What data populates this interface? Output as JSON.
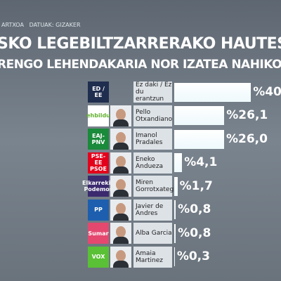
{
  "header": {
    "source": "ARTXOA   DATUAK: GIZAKER",
    "title": "SKO LEGEBILTZARRERAKO HAUTESKUN",
    "subtitle": "RENGO LEHENDAKARIA NOR IZATEA NAHIKO ZENUKE"
  },
  "chart_data": {
    "type": "bar",
    "orientation": "horizontal",
    "color": "#eef9fc",
    "categories": [
      "Ez daki / Ez du erantzun",
      "Pello Otxandiano",
      "Imanol Pradales",
      "Eneko Andueza",
      "Miren Gorrotxategi",
      "Javier de Andres",
      "Alba Garcia",
      "Amaia Martinez"
    ],
    "logos": [
      "ED / EE",
      "ehbildu",
      "EAJ-PNV",
      "PSE-EE PSOE",
      "Elkarrekin Podemos",
      "PP",
      "Sumar",
      "VOX"
    ],
    "logo_colors": [
      "#1f2d4f",
      "#ffffff",
      "#1a8a3b",
      "#e3001b",
      "#3b2a6e",
      "#1d5fae",
      "#e4486f",
      "#5ac035"
    ],
    "values": [
      40,
      26.1,
      26.0,
      4.1,
      1.7,
      0.8,
      0.8,
      0.3
    ],
    "value_labels": [
      "%40",
      "%26,1",
      "%26,0",
      "%4,1",
      "%1,7",
      "%0,8",
      "%0,8",
      "%0,3"
    ]
  }
}
